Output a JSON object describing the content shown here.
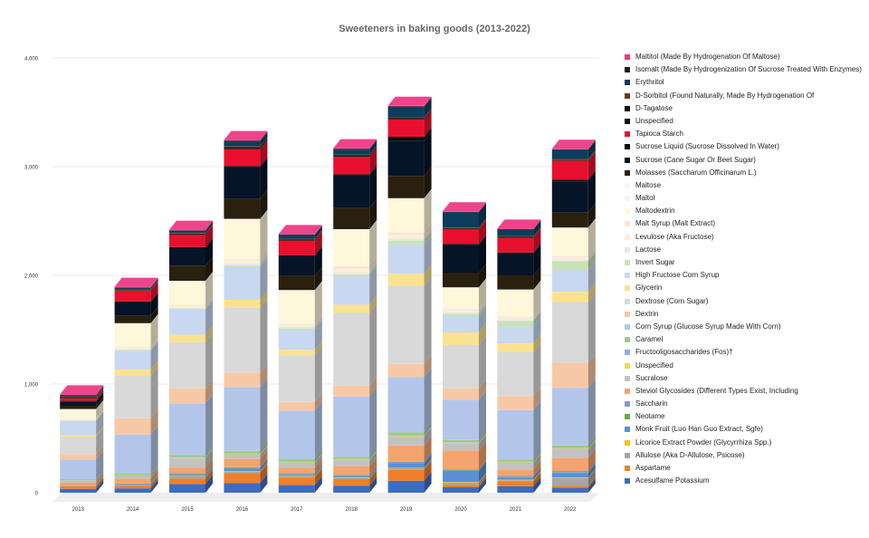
{
  "chart_data": {
    "type": "bar",
    "stacked": true,
    "title": "Sweeteners in baking goods (2013-2022)",
    "xlabel": "",
    "ylabel": "",
    "ylim": [
      0,
      4000
    ],
    "yticks": [
      0,
      1000,
      2000,
      3000,
      4000
    ],
    "ytick_labels": [
      "0",
      "1,000",
      "2,000",
      "3,000",
      "4,000"
    ],
    "grid": true,
    "legend_position": "right",
    "categories": [
      "2013",
      "2014",
      "2015",
      "2016",
      "2017",
      "2018",
      "2019",
      "2020",
      "2021",
      "2022"
    ],
    "series": [
      {
        "name": "Acesulfame Potassium",
        "color": "#3d6cc4",
        "values": [
          35,
          40,
          80,
          90,
          70,
          65,
          110,
          50,
          60,
          45
        ]
      },
      {
        "name": "Aspartame",
        "color": "#ef7f2a",
        "values": [
          25,
          25,
          50,
          90,
          70,
          60,
          100,
          20,
          45,
          20
        ]
      },
      {
        "name": "Allulose (Aka D-Allulose, Psicose)",
        "color": "#a6a6a6",
        "values": [
          5,
          10,
          20,
          15,
          10,
          10,
          15,
          25,
          10,
          70
        ]
      },
      {
        "name": "Licorice Extract Powder (Glycyrrhiza Spp.)",
        "color": "#f7c21a",
        "values": [
          0,
          0,
          5,
          5,
          5,
          5,
          5,
          5,
          5,
          5
        ]
      },
      {
        "name": "Monk Fruit (Luo Han Guo Extract, Sgfe)",
        "color": "#5b8fd5",
        "values": [
          0,
          5,
          10,
          20,
          10,
          10,
          40,
          100,
          20,
          40
        ]
      },
      {
        "name": "Neotame",
        "color": "#6aaa41",
        "values": [
          0,
          0,
          5,
          5,
          5,
          5,
          5,
          5,
          5,
          5
        ]
      },
      {
        "name": "Saccharin",
        "color": "#7f9ad8",
        "values": [
          5,
          5,
          10,
          10,
          10,
          10,
          10,
          10,
          10,
          15
        ]
      },
      {
        "name": "Steviol Glycosides (Different Types Exist, Including",
        "color": "#f4a46e",
        "values": [
          25,
          45,
          50,
          75,
          50,
          80,
          150,
          175,
          60,
          120
        ]
      },
      {
        "name": "Sucralose",
        "color": "#c2c2c2",
        "values": [
          20,
          25,
          90,
          40,
          45,
          55,
          85,
          65,
          60,
          80
        ]
      },
      {
        "name": "Unspecified",
        "color": "#f9d45a",
        "values": [
          0,
          0,
          5,
          5,
          5,
          5,
          5,
          5,
          5,
          5
        ]
      },
      {
        "name": "Fructooligosaccharides (Fos)†",
        "color": "#8fb1de",
        "values": [
          0,
          5,
          5,
          5,
          5,
          5,
          5,
          5,
          5,
          5
        ]
      },
      {
        "name": "Caramel",
        "color": "#9dcc7f",
        "values": [
          10,
          15,
          15,
          25,
          25,
          20,
          25,
          20,
          20,
          25
        ]
      },
      {
        "name": "Corn Syrup (Glucose Syrup Made With Corn)",
        "color": "#b3c6e9",
        "values": [
          180,
          360,
          475,
          585,
          445,
          555,
          510,
          370,
          455,
          530
        ]
      },
      {
        "name": "Dextrin",
        "color": "#f7c8a6",
        "values": [
          50,
          150,
          140,
          135,
          80,
          100,
          120,
          105,
          130,
          230
        ]
      },
      {
        "name": "Dextrose (Corn Sugar)",
        "color": "#d9d9d9",
        "values": [
          160,
          390,
          425,
          595,
          430,
          670,
          720,
          400,
          405,
          560
        ]
      },
      {
        "name": "Glycerin",
        "color": "#fbe28e",
        "values": [
          15,
          60,
          70,
          75,
          50,
          75,
          110,
          115,
          80,
          95
        ]
      },
      {
        "name": "High Fructose Corn Syrup",
        "color": "#c8d8f0",
        "values": [
          130,
          170,
          230,
          300,
          185,
          265,
          265,
          150,
          155,
          200
        ]
      },
      {
        "name": "Invert Sugar",
        "color": "#c9e2b5",
        "values": [
          5,
          10,
          10,
          15,
          15,
          15,
          40,
          20,
          50,
          80
        ]
      },
      {
        "name": "Lactose",
        "color": "#e8e8e8",
        "values": [
          5,
          5,
          10,
          20,
          15,
          15,
          20,
          15,
          15,
          15
        ]
      },
      {
        "name": "Levulose (Aka Fructose)",
        "color": "#fbefd9",
        "values": [
          5,
          10,
          15,
          20,
          15,
          30,
          30,
          15,
          10,
          20
        ]
      },
      {
        "name": "Malt Syrup (Malt Extract)",
        "color": "#fde6d6",
        "values": [
          5,
          10,
          10,
          20,
          10,
          30,
          25,
          15,
          15,
          15
        ]
      },
      {
        "name": "Maltodextrin",
        "color": "#fff7da",
        "values": [
          80,
          210,
          210,
          360,
          300,
          330,
          305,
          190,
          240,
          250
        ]
      },
      {
        "name": "Maltol",
        "color": "#f0f5fb",
        "values": [
          5,
          5,
          5,
          5,
          5,
          5,
          5,
          5,
          5,
          5
        ]
      },
      {
        "name": "Maltose",
        "color": "#f4f4f4",
        "values": [
          5,
          5,
          5,
          5,
          5,
          5,
          5,
          5,
          5,
          5
        ]
      },
      {
        "name": "Molasses (Saccharum Officinarum L.)",
        "color": "#2b1f0e",
        "values": [
          30,
          70,
          140,
          185,
          130,
          195,
          205,
          135,
          130,
          140
        ]
      },
      {
        "name": "Sucrose (Cane Sugar Or Beet Sugar)",
        "color": "#061428",
        "values": [
          40,
          120,
          160,
          290,
          180,
          300,
          320,
          255,
          200,
          285
        ]
      },
      {
        "name": "Sucrose Liquid (Sucrose Dissolved In Water)",
        "color": "#0c0c0c",
        "values": [
          5,
          10,
          10,
          10,
          10,
          10,
          40,
          10,
          10,
          15
        ]
      },
      {
        "name": "Tapioca Starch",
        "color": "#e8102e",
        "values": [
          25,
          100,
          115,
          155,
          135,
          160,
          160,
          135,
          135,
          175
        ]
      },
      {
        "name": "Unspecified",
        "color": "#1a1208",
        "values": [
          5,
          5,
          5,
          10,
          5,
          10,
          10,
          5,
          5,
          5
        ]
      },
      {
        "name": "D-Tagatose",
        "color": "#101010",
        "values": [
          5,
          5,
          5,
          10,
          5,
          5,
          5,
          5,
          5,
          5
        ]
      },
      {
        "name": "D-Sorbitol (Found Naturally, Made By Hydrogenation Of",
        "color": "#614020",
        "values": [
          5,
          5,
          5,
          10,
          5,
          5,
          5,
          5,
          5,
          5
        ]
      },
      {
        "name": "Erythritol",
        "color": "#0e3c5c",
        "values": [
          10,
          10,
          20,
          40,
          35,
          45,
          90,
          140,
          60,
          85
        ]
      },
      {
        "name": "Isomalt (Made By Hydrogenization Of Sucrose Treated With Enzymes)",
        "color": "#1e1e1e",
        "values": [
          5,
          5,
          5,
          10,
          5,
          10,
          10,
          5,
          5,
          5
        ]
      },
      {
        "name": "Maltitol (Made By Hydrogenation Of Maltose)",
        "color": "#ee3a86",
        "values": [
          5,
          5,
          5,
          5,
          5,
          5,
          5,
          5,
          5,
          5
        ]
      }
    ]
  }
}
